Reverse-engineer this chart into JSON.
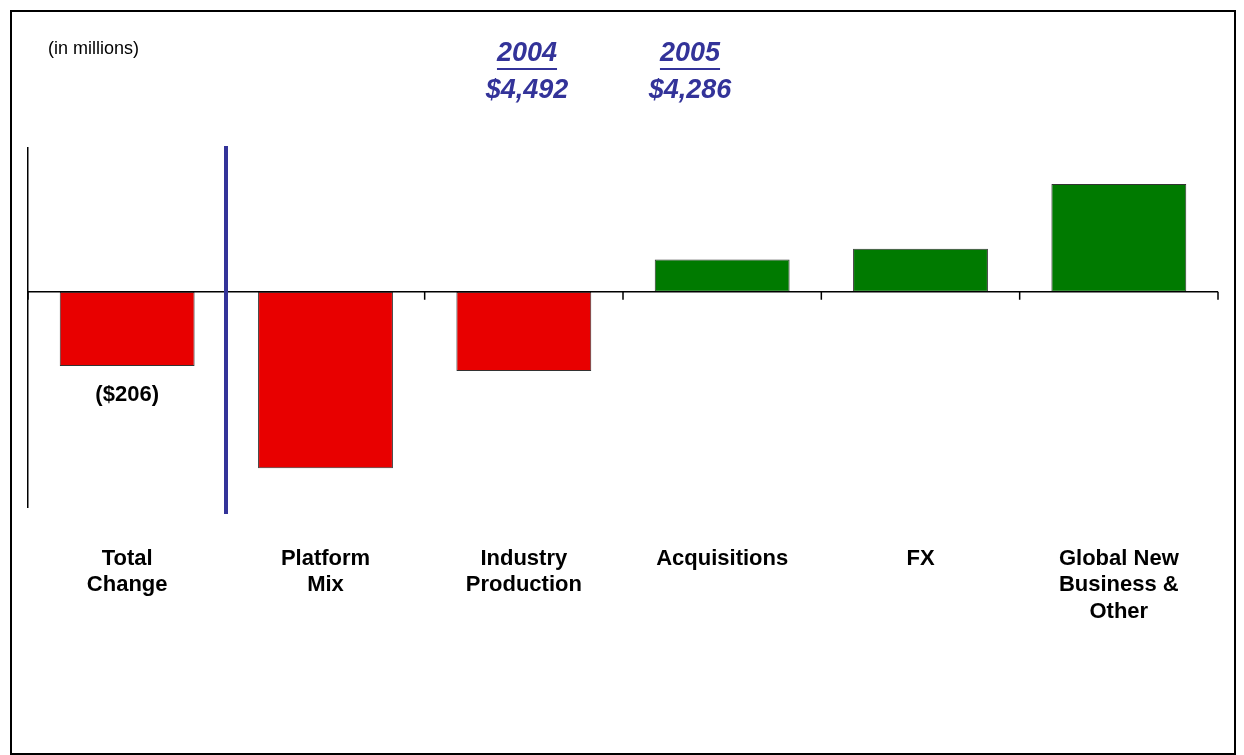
{
  "chart_data": {
    "type": "bar",
    "categories": [
      "Total Change",
      "Platform Mix",
      "Industry Production",
      "Acquisitions",
      "FX",
      "Global New Business & Other"
    ],
    "values": [
      -206,
      -490,
      -220,
      90,
      120,
      300
    ],
    "colors": [
      "#e80000",
      "#e80000",
      "#e80000",
      "#007a00",
      "#007a00",
      "#007a00"
    ],
    "value_labels": [
      "($206)",
      null,
      null,
      null,
      null,
      null
    ],
    "tick_labels": "x",
    "annotations": [
      "(in millions)",
      "2004",
      "$4,492",
      "2005",
      "$4,286"
    ],
    "legend": false,
    "grid": false
  }
}
